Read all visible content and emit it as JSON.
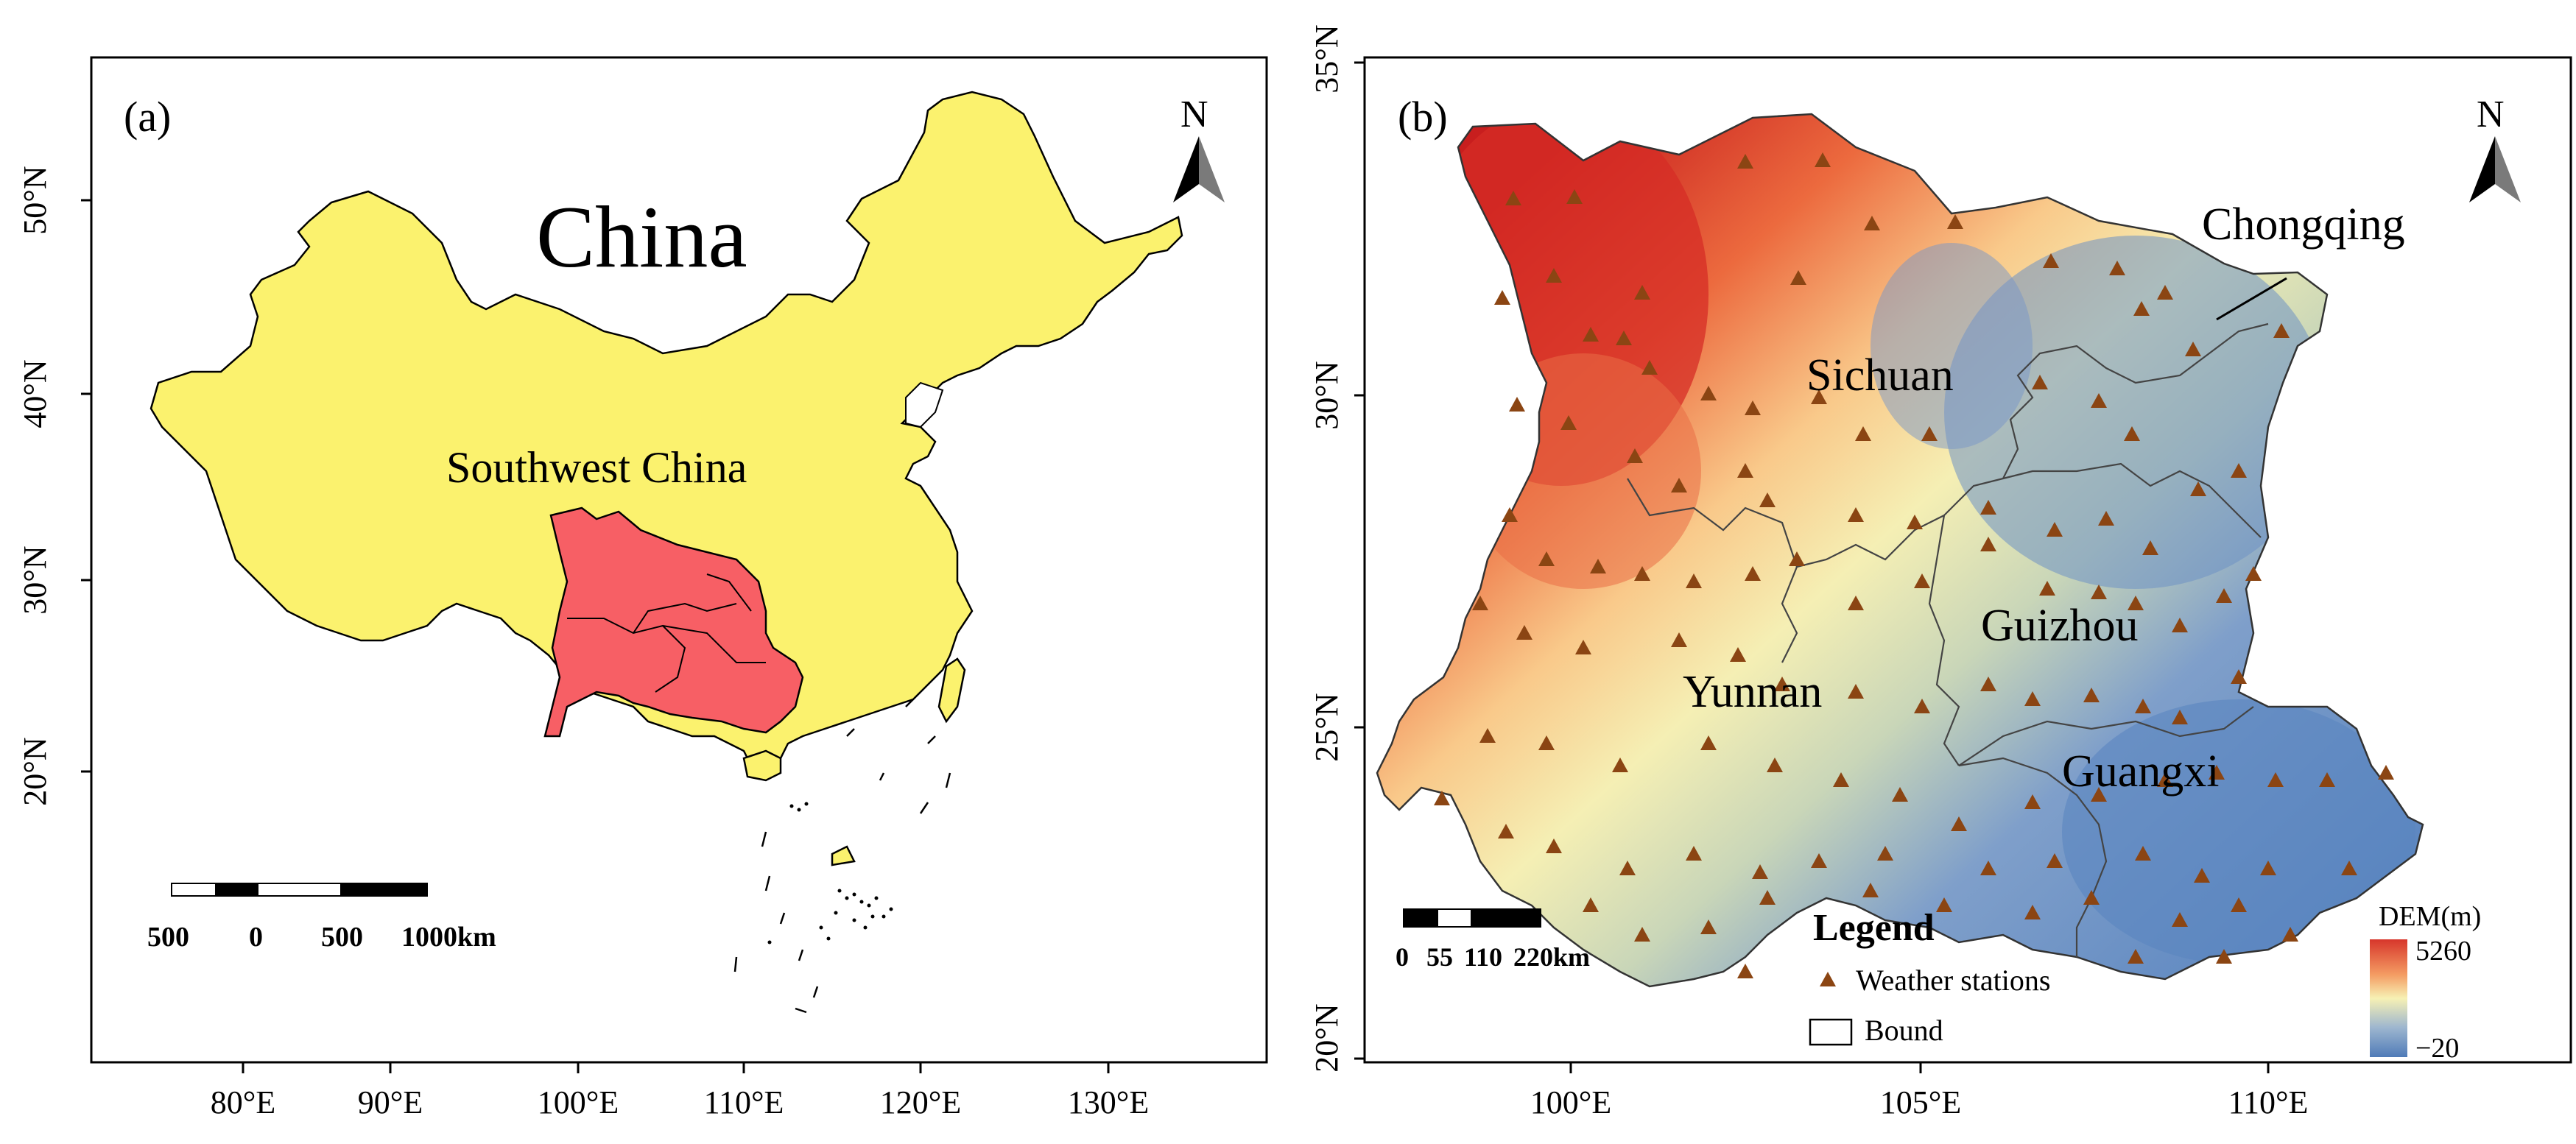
{
  "panel_a": {
    "label": "(a)",
    "title": "China",
    "region_label": "Southwest China",
    "north": "N",
    "x_ticks": [
      "80°E",
      "90°E",
      "100°E",
      "110°E",
      "120°E",
      "130°E"
    ],
    "y_ticks": [
      "50°N",
      "40°N",
      "30°N",
      "20°N"
    ],
    "scale_labels": [
      "500",
      "0",
      "500",
      "1000km"
    ],
    "colors": {
      "china": "#fbf26e",
      "southwest": "#f75f65"
    }
  },
  "panel_b": {
    "label": "(b)",
    "north": "N",
    "provinces": [
      "Sichuan",
      "Chongqing",
      "Guizhou",
      "Yunnan",
      "Guangxi"
    ],
    "x_ticks": [
      "100°E",
      "105°E",
      "110°E"
    ],
    "y_ticks": [
      "35°N",
      "30°N",
      "25°N",
      "20°N"
    ],
    "scale_labels": [
      "0",
      "55",
      "110",
      "220km"
    ],
    "legend": {
      "title": "Legend",
      "stations": "Weather stations",
      "bound": "Bound"
    },
    "dem": {
      "title": "DEM(m)",
      "max": "5260",
      "min": "−20"
    },
    "colors": {
      "station": "#8b4513",
      "dem_high": "#d7362b",
      "dem_mid": "#f7f1b4",
      "dem_low": "#5a86c2"
    }
  }
}
